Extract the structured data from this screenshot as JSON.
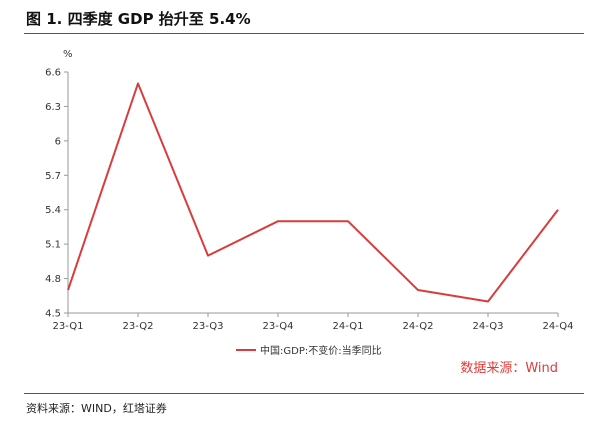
{
  "header": {
    "title": "图 1. 四季度 GDP 抬升至 5.4%"
  },
  "footer": {
    "source": "资料来源：WIND，红塔证券"
  },
  "chart_data": {
    "type": "line",
    "title": "",
    "xlabel": "",
    "ylabel": "%",
    "categories": [
      "23-Q1",
      "23-Q2",
      "23-Q3",
      "23-Q4",
      "24-Q1",
      "24-Q2",
      "24-Q3",
      "24-Q4"
    ],
    "series": [
      {
        "name": "中国:GDP:不变价:当季同比",
        "values": [
          4.7,
          6.5,
          5.0,
          5.3,
          5.3,
          4.7,
          4.6,
          5.4
        ],
        "color": "#d93c3c"
      }
    ],
    "y_ticks": [
      "4.5",
      "4.8",
      "5.1",
      "5.4",
      "5.7",
      "6",
      "6.3",
      "6.6"
    ],
    "ylim": [
      4.5,
      6.6
    ],
    "grid": false,
    "legend_position": "bottom-center",
    "source_note": "数据来源：Wind"
  }
}
